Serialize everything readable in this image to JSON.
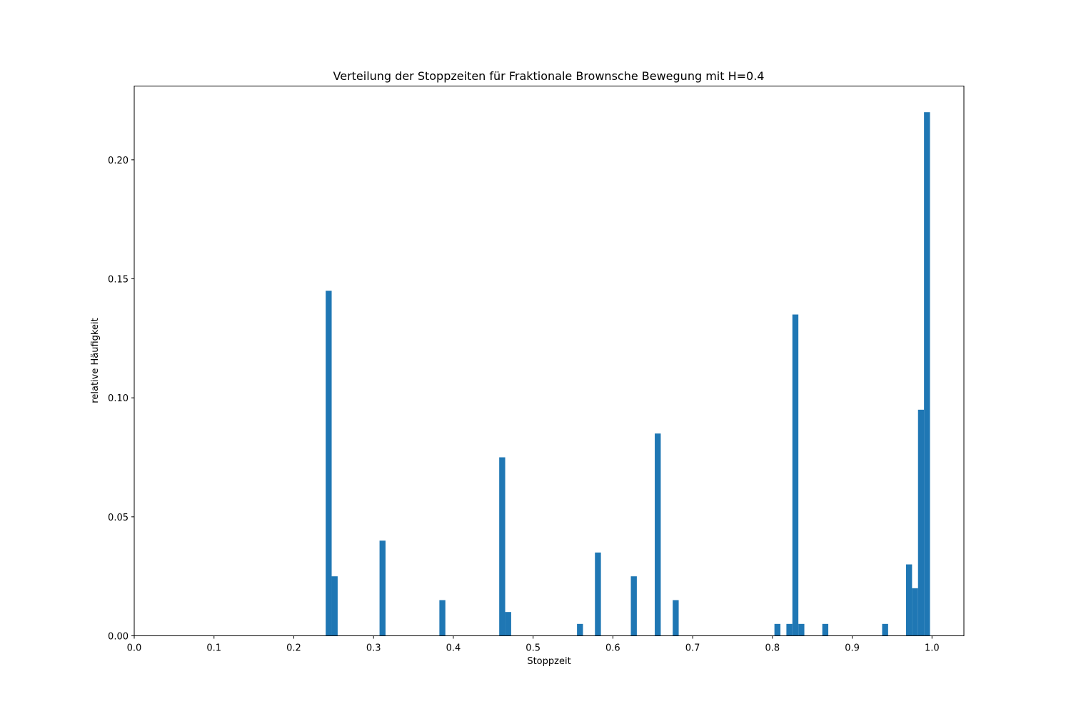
{
  "chart_data": {
    "type": "bar",
    "title": "Verteilung der Stoppzeiten für Fraktionale Brownsche Bewegung mit H=0.4",
    "xlabel": "Stoppzeit",
    "ylabel": "relative Häufigkeit",
    "xlim": [
      0.0,
      1.04
    ],
    "ylim": [
      0.0,
      0.231
    ],
    "xticks": [
      "0.0",
      "0.1",
      "0.2",
      "0.3",
      "0.4",
      "0.5",
      "0.6",
      "0.7",
      "0.8",
      "0.9",
      "1.0"
    ],
    "yticks": [
      "0.00",
      "0.05",
      "0.10",
      "0.15",
      "0.20"
    ],
    "bin_width": 0.0075,
    "bar_color": "#1f77b4",
    "grid": false,
    "legend": "none",
    "bins": [
      {
        "x": 0.24,
        "value": 0.145
      },
      {
        "x": 0.2475,
        "value": 0.025
      },
      {
        "x": 0.3075,
        "value": 0.04
      },
      {
        "x": 0.3825,
        "value": 0.015
      },
      {
        "x": 0.4575,
        "value": 0.075
      },
      {
        "x": 0.465,
        "value": 0.01
      },
      {
        "x": 0.555,
        "value": 0.005
      },
      {
        "x": 0.5775,
        "value": 0.035
      },
      {
        "x": 0.6225,
        "value": 0.025
      },
      {
        "x": 0.6525,
        "value": 0.085
      },
      {
        "x": 0.675,
        "value": 0.015
      },
      {
        "x": 0.8025,
        "value": 0.005
      },
      {
        "x": 0.8175,
        "value": 0.005
      },
      {
        "x": 0.825,
        "value": 0.135
      },
      {
        "x": 0.8325,
        "value": 0.005
      },
      {
        "x": 0.8625,
        "value": 0.005
      },
      {
        "x": 0.9375,
        "value": 0.005
      },
      {
        "x": 0.9675,
        "value": 0.03
      },
      {
        "x": 0.975,
        "value": 0.02
      },
      {
        "x": 0.9825,
        "value": 0.095
      },
      {
        "x": 0.99,
        "value": 0.22
      }
    ]
  }
}
